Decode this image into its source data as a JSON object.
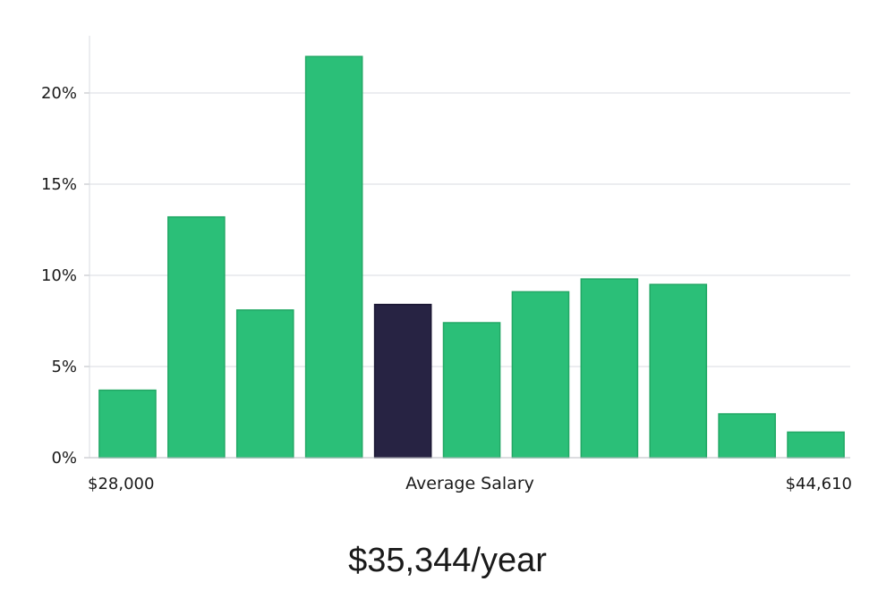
{
  "chart_data": {
    "type": "bar",
    "values": [
      3.7,
      13.2,
      8.1,
      22.0,
      8.4,
      7.4,
      9.1,
      9.8,
      9.5,
      2.4,
      1.4
    ],
    "highlight_index": 4,
    "ylim": [
      0,
      23
    ],
    "y_ticks": [
      {
        "value": 0,
        "label": "0%"
      },
      {
        "value": 5,
        "label": "5%"
      },
      {
        "value": 10,
        "label": "10%"
      },
      {
        "value": 15,
        "label": "15%"
      },
      {
        "value": 20,
        "label": "20%"
      }
    ],
    "x_min_label": "$28,000",
    "x_max_label": "$44,610",
    "xlabel": "Average Salary",
    "ylabel": "",
    "grid": true,
    "bar_color": "#2bbf78",
    "highlight_color": "#272343",
    "grid_color": "#d9dbe0"
  },
  "headline": "$35,344/year"
}
